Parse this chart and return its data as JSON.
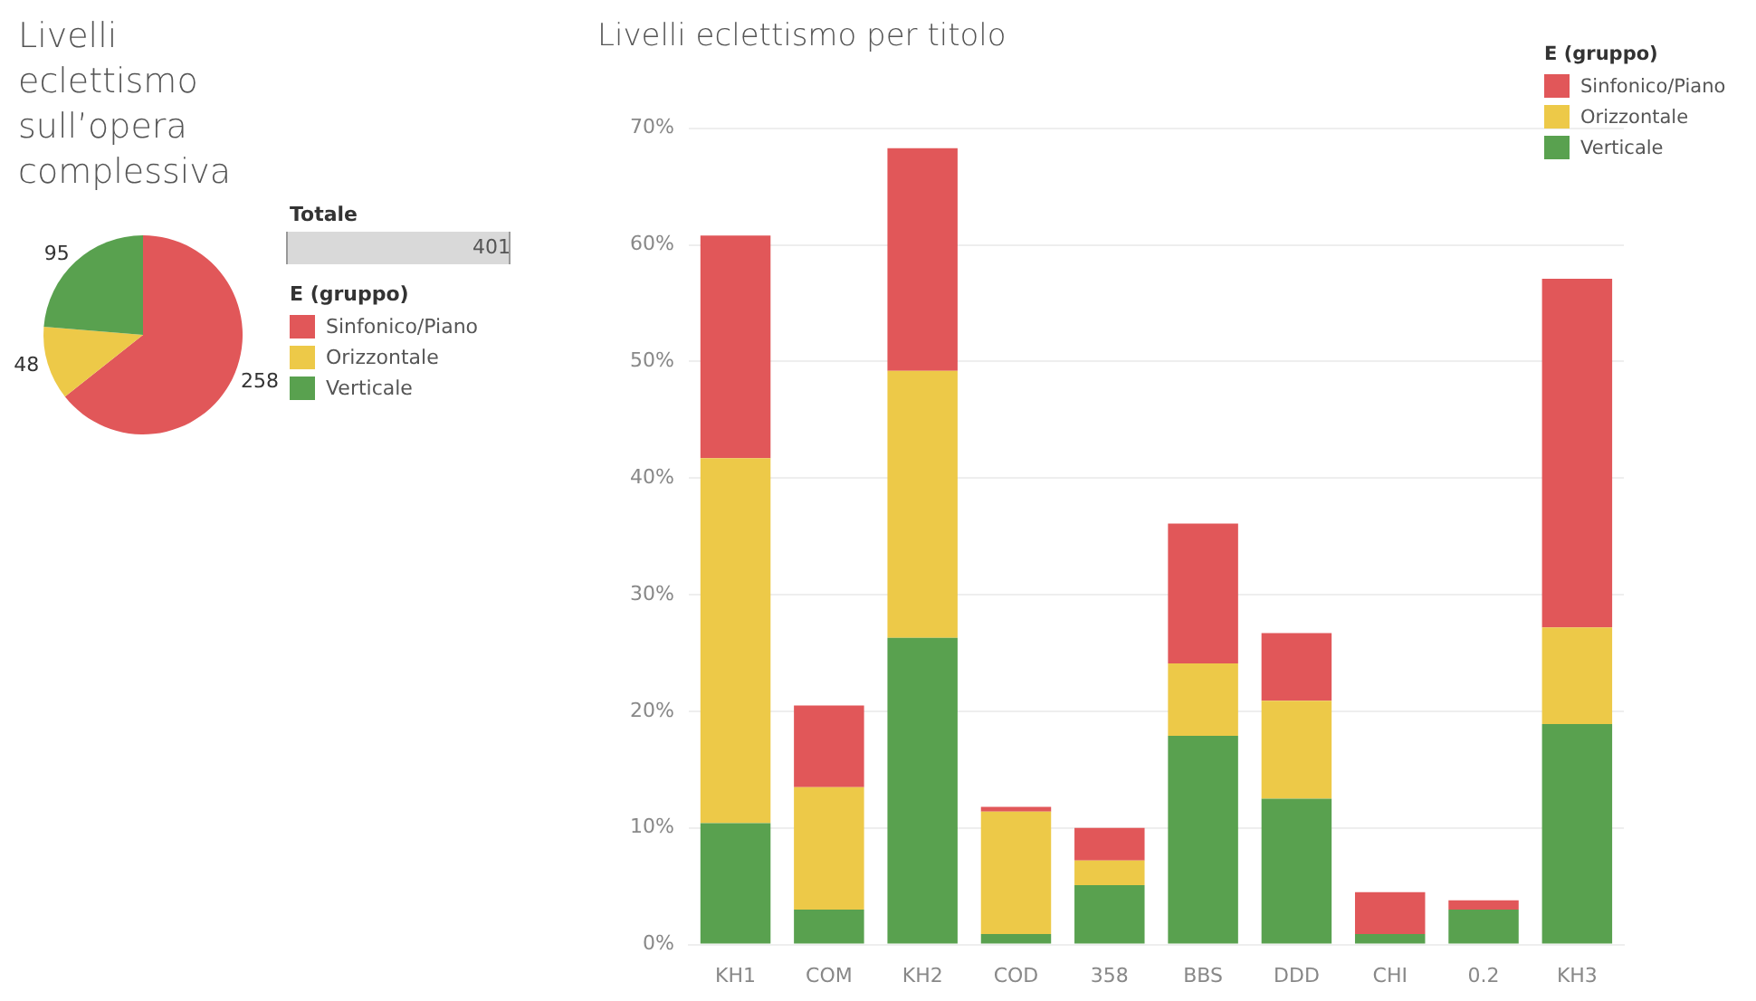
{
  "chart_data": [
    {
      "type": "pie",
      "title": "Livelli eclettismo sull’opera complessiva",
      "legend_title": "E (gruppo)",
      "legend": "right",
      "data_labels": true,
      "categories": [
        "Sinfonico/Piano",
        "Orizzontale",
        "Verticale"
      ],
      "values": [
        258,
        48,
        95
      ],
      "colors": [
        "#e15759",
        "#edc948",
        "#59a14f"
      ]
    },
    {
      "type": "other",
      "title": "Totale",
      "annotations": [
        "401"
      ]
    },
    {
      "type": "bar",
      "stacked": true,
      "title": "Livelli eclettismo per titolo",
      "legend_title": "E (gruppo)",
      "legend": "top right",
      "grid": "y",
      "categories": [
        "KH1",
        "COM",
        "KH2",
        "COD",
        "358",
        "BBS",
        "DDD",
        "CHI",
        "0.2",
        "KH3"
      ],
      "ylim": [
        0,
        72
      ],
      "yticks": [
        {
          "value": 0,
          "label": "0%"
        },
        {
          "value": 10,
          "label": "10%"
        },
        {
          "value": 20,
          "label": "20%"
        },
        {
          "value": 30,
          "label": "30%"
        },
        {
          "value": 40,
          "label": "40%"
        },
        {
          "value": 50,
          "label": "50%"
        },
        {
          "value": 60,
          "label": "60%"
        },
        {
          "value": 70,
          "label": "70%"
        }
      ],
      "series": [
        {
          "name": "Verticale",
          "color": "#59a14f",
          "values": [
            10.4,
            3.0,
            26.3,
            0.9,
            5.1,
            17.9,
            12.5,
            0.9,
            3.0,
            18.9
          ]
        },
        {
          "name": "Orizzontale",
          "color": "#edc948",
          "values": [
            31.3,
            10.5,
            22.9,
            10.5,
            2.1,
            6.2,
            8.4,
            0,
            0,
            8.3
          ]
        },
        {
          "name": "Sinfonico/Piano",
          "color": "#e15759",
          "values": [
            19.1,
            7.0,
            19.1,
            0.4,
            2.8,
            12.0,
            5.8,
            3.6,
            0.8,
            29.9
          ]
        }
      ]
    }
  ]
}
